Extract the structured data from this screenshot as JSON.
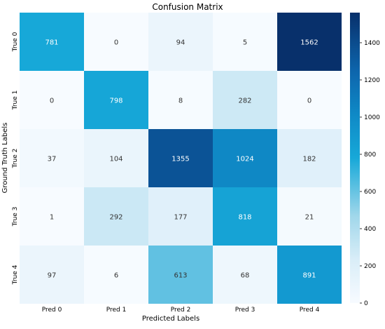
{
  "chart_data": {
    "type": "heatmap",
    "title": "Confusion Matrix",
    "xlabel": "Predicted Labels",
    "ylabel": "Ground Truth Labels",
    "x_categories": [
      "Pred 0",
      "Pred 1",
      "Pred 2",
      "Pred 3",
      "Pred 4"
    ],
    "y_categories": [
      "True 0",
      "True 1",
      "True 2",
      "True 3",
      "True 4"
    ],
    "values": [
      [
        781,
        0,
        94,
        5,
        1562
      ],
      [
        0,
        798,
        8,
        282,
        0
      ],
      [
        37,
        104,
        1355,
        1024,
        182
      ],
      [
        1,
        292,
        177,
        818,
        21
      ],
      [
        97,
        6,
        613,
        68,
        891
      ]
    ],
    "colormap": "Blues-like (white → cyan → dark navy)",
    "colorbar": {
      "min": 0,
      "max": 1562,
      "ticks": [
        0,
        200,
        400,
        600,
        800,
        1000,
        1200,
        1400
      ]
    },
    "annotations": true
  }
}
